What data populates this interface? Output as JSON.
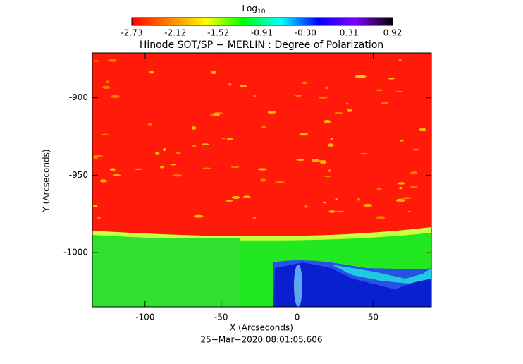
{
  "chart_data": {
    "type": "image",
    "title": "Hinode SOT/SP − MERLIN : Degree of Polarization",
    "x_label": "X (Arcseconds)",
    "y_label": "Y (Arcseconds)",
    "footer": "25−Mar−2020 08:01:05.606",
    "xlim": [
      -134.7,
      88.3
    ],
    "ylim": [
      -1035,
      -871
    ],
    "xticks": [
      -100,
      -50,
      0,
      50
    ],
    "yticks": [
      -1000,
      -950,
      -900
    ],
    "colorbar_title": "Log",
    "colorbar_title_sub": "10",
    "clim": [
      -2.73,
      0.92
    ],
    "cticks": [
      -2.73,
      -2.12,
      -1.52,
      -0.91,
      {
        "value": -0.3,
        "label": "-0.30"
      },
      0.31,
      0.92
    ],
    "colormap": [
      "#ff0000",
      "#ff8000",
      "#ffff00",
      "#00ff00",
      "#00ffff",
      "#0000ff",
      "#8000ff",
      "#000000"
    ]
  }
}
